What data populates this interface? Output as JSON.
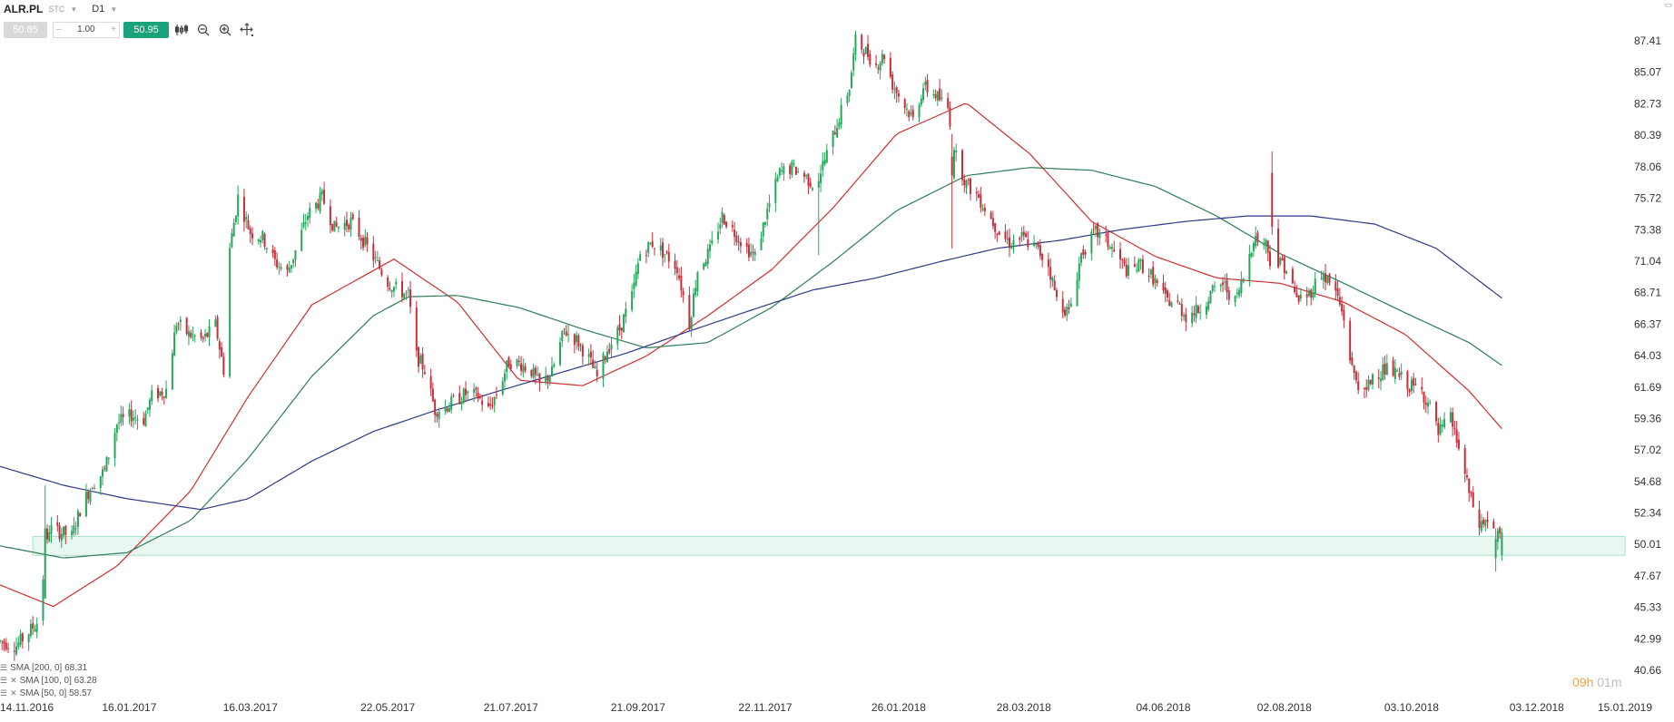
{
  "header": {
    "symbol": "ALR.PL",
    "market": "STC",
    "timeframe": "D1"
  },
  "toolbar": {
    "bid": "50.85",
    "minus": "–",
    "quantity": "1.00",
    "plus": "+",
    "ask": "50.95",
    "icons": [
      "chart-type-icon",
      "zoom-out-icon",
      "zoom-in-icon",
      "crosshair-icon"
    ]
  },
  "indicators": [
    {
      "label": "SMA [200, 0] 68.31",
      "color": "#2e3a87"
    },
    {
      "label": "SMA [100, 0] 63.28",
      "color": "#2f7d55"
    },
    {
      "label": "SMA [50, 0] 58.57",
      "color": "#d32f2f"
    }
  ],
  "timer": {
    "hours": "09h",
    "minutes": "01m"
  },
  "colors": {
    "up": "#26a65b",
    "down": "#c62f3a",
    "zone_fill": "#e8f8f1",
    "zone_stroke": "#a8e0c8",
    "grid_text": "#333333"
  },
  "chart_data": {
    "type": "candlestick",
    "x_tick_labels": [
      "14.11.2016",
      "16.01.2017",
      "16.03.2017",
      "22.05.2017",
      "21.07.2017",
      "21.09.2017",
      "22.11.2017",
      "26.01.2018",
      "28.03.2018",
      "04.06.2018",
      "02.08.2018",
      "03.10.2018",
      "03.12.2018",
      "15.01.2019"
    ],
    "y_tick_labels": [
      "87.41",
      "85.07",
      "82.73",
      "80.39",
      "78.06",
      "75.72",
      "73.38",
      "71.04",
      "68.71",
      "66.37",
      "64.03",
      "61.69",
      "59.36",
      "57.02",
      "54.68",
      "52.34",
      "50.01",
      "47.67",
      "45.33",
      "42.99",
      "40.66"
    ],
    "ylim": [
      40.66,
      87.41
    ],
    "xlim": [
      "2016-11-14",
      "2019-01-15"
    ],
    "support_zone": {
      "from": "2016-11-30",
      "to": "2019-01-15",
      "low": 49.2,
      "high": 50.6
    },
    "price_path": [
      [
        "2016-11-14",
        42.8
      ],
      [
        "2016-11-22",
        42.5
      ],
      [
        "2016-11-28",
        43.5
      ],
      [
        "2016-12-02",
        44.2
      ],
      [
        "2016-12-05",
        47.6
      ],
      [
        "2016-12-08",
        51.2
      ],
      [
        "2016-12-14",
        50.9
      ],
      [
        "2016-12-19",
        50.6
      ],
      [
        "2016-12-23",
        52.6
      ],
      [
        "2016-12-29",
        54.5
      ],
      [
        "2017-01-04",
        55.5
      ],
      [
        "2017-01-10",
        59.0
      ],
      [
        "2017-01-17",
        59.6
      ],
      [
        "2017-01-23",
        59.3
      ],
      [
        "2017-01-27",
        61.0
      ],
      [
        "2017-02-03",
        61.5
      ],
      [
        "2017-02-08",
        66.5
      ],
      [
        "2017-02-14",
        65.6
      ],
      [
        "2017-02-21",
        65.2
      ],
      [
        "2017-02-27",
        66.3
      ],
      [
        "2017-03-03",
        63.0
      ],
      [
        "2017-03-06",
        72.0
      ],
      [
        "2017-03-10",
        75.8
      ],
      [
        "2017-03-16",
        73.2
      ],
      [
        "2017-03-22",
        72.8
      ],
      [
        "2017-03-28",
        71.0
      ],
      [
        "2017-04-03",
        70.2
      ],
      [
        "2017-04-07",
        71.8
      ],
      [
        "2017-04-13",
        74.5
      ],
      [
        "2017-04-20",
        75.8
      ],
      [
        "2017-04-26",
        73.5
      ],
      [
        "2017-05-04",
        74.0
      ],
      [
        "2017-05-10",
        72.6
      ],
      [
        "2017-05-17",
        70.8
      ],
      [
        "2017-05-22",
        69.5
      ],
      [
        "2017-05-26",
        69.0
      ],
      [
        "2017-06-01",
        68.5
      ],
      [
        "2017-06-05",
        64.0
      ],
      [
        "2017-06-09",
        63.0
      ],
      [
        "2017-06-14",
        60.0
      ],
      [
        "2017-06-19",
        60.2
      ],
      [
        "2017-06-23",
        60.6
      ],
      [
        "2017-06-29",
        61.2
      ],
      [
        "2017-07-05",
        61.0
      ],
      [
        "2017-07-10",
        60.0
      ],
      [
        "2017-07-14",
        61.2
      ],
      [
        "2017-07-20",
        63.6
      ],
      [
        "2017-07-26",
        63.4
      ],
      [
        "2017-07-31",
        62.9
      ],
      [
        "2017-08-04",
        61.8
      ],
      [
        "2017-08-10",
        62.8
      ],
      [
        "2017-08-16",
        65.9
      ],
      [
        "2017-08-22",
        65.2
      ],
      [
        "2017-08-28",
        63.8
      ],
      [
        "2017-09-01",
        62.4
      ],
      [
        "2017-09-06",
        64.5
      ],
      [
        "2017-09-12",
        66.0
      ],
      [
        "2017-09-18",
        68.4
      ],
      [
        "2017-09-22",
        71.6
      ],
      [
        "2017-09-28",
        72.4
      ],
      [
        "2017-10-04",
        71.6
      ],
      [
        "2017-10-10",
        70.6
      ],
      [
        "2017-10-16",
        66.4
      ],
      [
        "2017-10-20",
        70.4
      ],
      [
        "2017-10-26",
        71.8
      ],
      [
        "2017-11-01",
        74.4
      ],
      [
        "2017-11-07",
        73.2
      ],
      [
        "2017-11-13",
        72.0
      ],
      [
        "2017-11-17",
        71.4
      ],
      [
        "2017-11-23",
        74.8
      ],
      [
        "2017-11-29",
        77.6
      ],
      [
        "2017-12-05",
        78.0
      ],
      [
        "2017-12-11",
        77.4
      ],
      [
        "2017-12-15",
        76.8
      ],
      [
        "2017-12-19",
        77.8
      ],
      [
        "2017-12-22",
        79.0
      ],
      [
        "2018-01-02",
        84.0
      ],
      [
        "2018-01-05",
        87.4
      ],
      [
        "2018-01-10",
        86.6
      ],
      [
        "2018-01-15",
        85.6
      ],
      [
        "2018-01-19",
        86.4
      ],
      [
        "2018-01-23",
        84.2
      ],
      [
        "2018-01-29",
        82.6
      ],
      [
        "2018-02-02",
        81.6
      ],
      [
        "2018-02-07",
        84.0
      ],
      [
        "2018-02-13",
        83.4
      ],
      [
        "2018-02-19",
        82.4
      ],
      [
        "2018-02-23",
        78.8
      ],
      [
        "2018-02-28",
        76.8
      ],
      [
        "2018-03-06",
        75.8
      ],
      [
        "2018-03-12",
        74.2
      ],
      [
        "2018-03-16",
        73.2
      ],
      [
        "2018-03-21",
        72.4
      ],
      [
        "2018-03-27",
        72.8
      ],
      [
        "2018-04-03",
        72.0
      ],
      [
        "2018-04-09",
        70.8
      ],
      [
        "2018-04-13",
        68.2
      ],
      [
        "2018-04-19",
        67.2
      ],
      [
        "2018-04-25",
        71.6
      ],
      [
        "2018-05-02",
        73.2
      ],
      [
        "2018-05-08",
        72.4
      ],
      [
        "2018-05-14",
        71.0
      ],
      [
        "2018-05-18",
        70.2
      ],
      [
        "2018-05-24",
        70.8
      ],
      [
        "2018-05-30",
        69.8
      ],
      [
        "2018-06-05",
        68.2
      ],
      [
        "2018-06-11",
        67.8
      ],
      [
        "2018-06-15",
        67.0
      ],
      [
        "2018-06-21",
        67.4
      ],
      [
        "2018-06-27",
        68.6
      ],
      [
        "2018-07-03",
        69.4
      ],
      [
        "2018-07-09",
        68.0
      ],
      [
        "2018-07-13",
        69.8
      ],
      [
        "2018-07-18",
        72.8
      ],
      [
        "2018-07-24",
        72.4
      ],
      [
        "2018-07-27",
        70.6
      ],
      [
        "2018-08-01",
        71.0
      ],
      [
        "2018-08-03",
        70.4
      ],
      [
        "2018-08-08",
        68.2
      ],
      [
        "2018-08-14",
        68.6
      ],
      [
        "2018-08-20",
        70.2
      ],
      [
        "2018-08-27",
        68.8
      ],
      [
        "2018-08-31",
        66.8
      ],
      [
        "2018-09-04",
        63.0
      ],
      [
        "2018-09-10",
        61.0
      ],
      [
        "2018-09-14",
        62.6
      ],
      [
        "2018-09-20",
        63.0
      ],
      [
        "2018-09-26",
        62.6
      ],
      [
        "2018-10-02",
        61.8
      ],
      [
        "2018-10-08",
        61.4
      ],
      [
        "2018-10-12",
        60.2
      ],
      [
        "2018-10-16",
        58.2
      ],
      [
        "2018-10-22",
        59.4
      ],
      [
        "2018-10-26",
        57.2
      ],
      [
        "2018-10-31",
        53.8
      ],
      [
        "2018-11-05",
        51.4
      ],
      [
        "2018-11-09",
        51.8
      ],
      [
        "2018-11-14",
        50.6
      ],
      [
        "2018-11-16",
        50.6
      ]
    ],
    "special_bars": [
      {
        "date": "2016-12-06",
        "open": 46.0,
        "high": 54.4,
        "low": 46.0,
        "close": 51.2
      },
      {
        "date": "2017-12-18",
        "open": 76.5,
        "high": 77.6,
        "low": 71.5,
        "close": 77.0
      },
      {
        "date": "2018-02-21",
        "open": 78.8,
        "high": 80.5,
        "low": 72.0,
        "close": 77.4
      },
      {
        "date": "2018-07-27",
        "open": 77.6,
        "high": 79.2,
        "low": 73.0,
        "close": 73.6
      },
      {
        "date": "2018-11-13",
        "open": 49.0,
        "high": 51.2,
        "low": 48.0,
        "close": 50.4
      },
      {
        "date": "2018-11-16",
        "open": 49.2,
        "high": 51.2,
        "low": 48.8,
        "close": 50.9
      }
    ],
    "series": [
      {
        "name": "SMA [50, 0]",
        "color": "#d32f2f",
        "points": [
          [
            "2016-11-14",
            47.0
          ],
          [
            "2016-12-10",
            45.4
          ],
          [
            "2017-01-10",
            48.4
          ],
          [
            "2017-02-15",
            54.0
          ],
          [
            "2017-03-15",
            61.0
          ],
          [
            "2017-04-15",
            67.8
          ],
          [
            "2017-05-25",
            71.2
          ],
          [
            "2017-06-25",
            68.0
          ],
          [
            "2017-07-25",
            62.2
          ],
          [
            "2017-08-25",
            61.8
          ],
          [
            "2017-09-25",
            64.0
          ],
          [
            "2017-10-25",
            67.0
          ],
          [
            "2017-11-25",
            70.4
          ],
          [
            "2017-12-25",
            75.0
          ],
          [
            "2018-01-25",
            80.5
          ],
          [
            "2018-02-28",
            82.8
          ],
          [
            "2018-03-31",
            79.0
          ],
          [
            "2018-04-30",
            74.0
          ],
          [
            "2018-05-31",
            71.4
          ],
          [
            "2018-06-30",
            69.8
          ],
          [
            "2018-07-31",
            69.4
          ],
          [
            "2018-08-31",
            68.0
          ],
          [
            "2018-09-30",
            65.6
          ],
          [
            "2018-10-31",
            61.4
          ],
          [
            "2018-11-16",
            58.6
          ]
        ]
      },
      {
        "name": "SMA [100, 0]",
        "color": "#2f7d55",
        "points": [
          [
            "2016-11-14",
            49.9
          ],
          [
            "2016-12-15",
            49.0
          ],
          [
            "2017-01-15",
            49.4
          ],
          [
            "2017-02-15",
            51.8
          ],
          [
            "2017-03-15",
            56.4
          ],
          [
            "2017-04-15",
            62.5
          ],
          [
            "2017-05-15",
            67.0
          ],
          [
            "2017-06-01",
            68.4
          ],
          [
            "2017-06-25",
            68.5
          ],
          [
            "2017-07-25",
            67.6
          ],
          [
            "2017-08-25",
            66.0
          ],
          [
            "2017-09-25",
            64.6
          ],
          [
            "2017-10-25",
            65.0
          ],
          [
            "2017-11-25",
            67.6
          ],
          [
            "2017-12-25",
            71.0
          ],
          [
            "2018-01-25",
            74.8
          ],
          [
            "2018-02-28",
            77.4
          ],
          [
            "2018-03-31",
            78.0
          ],
          [
            "2018-04-30",
            77.8
          ],
          [
            "2018-05-31",
            76.6
          ],
          [
            "2018-06-30",
            74.4
          ],
          [
            "2018-07-31",
            71.6
          ],
          [
            "2018-08-31",
            69.4
          ],
          [
            "2018-09-30",
            67.2
          ],
          [
            "2018-10-31",
            65.0
          ],
          [
            "2018-11-16",
            63.3
          ]
        ]
      },
      {
        "name": "SMA [200, 0]",
        "color": "#2e3a87",
        "points": [
          [
            "2016-11-14",
            55.8
          ],
          [
            "2016-12-15",
            54.4
          ],
          [
            "2017-01-15",
            53.4
          ],
          [
            "2017-02-20",
            52.6
          ],
          [
            "2017-03-15",
            53.4
          ],
          [
            "2017-04-15",
            56.2
          ],
          [
            "2017-05-15",
            58.4
          ],
          [
            "2017-06-15",
            60.0
          ],
          [
            "2017-07-15",
            61.4
          ],
          [
            "2017-08-15",
            62.8
          ],
          [
            "2017-09-15",
            64.2
          ],
          [
            "2017-10-15",
            65.8
          ],
          [
            "2017-11-15",
            67.4
          ],
          [
            "2017-12-15",
            68.9
          ],
          [
            "2018-01-15",
            69.8
          ],
          [
            "2018-02-15",
            71.0
          ],
          [
            "2018-03-15",
            72.0
          ],
          [
            "2018-04-15",
            72.6
          ],
          [
            "2018-05-15",
            73.4
          ],
          [
            "2018-06-15",
            74.0
          ],
          [
            "2018-07-15",
            74.4
          ],
          [
            "2018-08-15",
            74.4
          ],
          [
            "2018-09-15",
            73.8
          ],
          [
            "2018-10-15",
            72.0
          ],
          [
            "2018-11-16",
            68.3
          ]
        ]
      }
    ]
  }
}
